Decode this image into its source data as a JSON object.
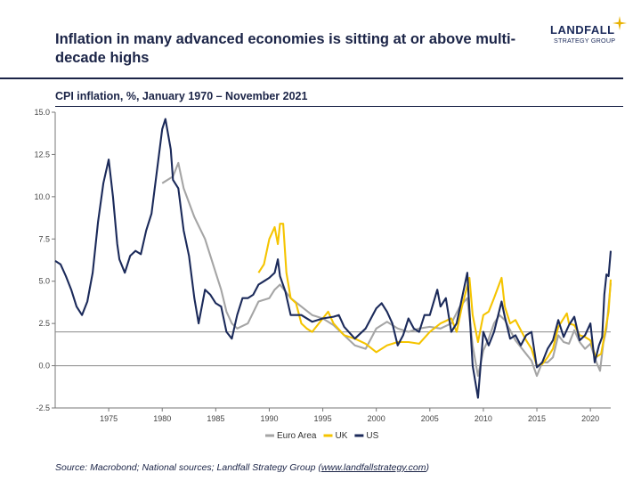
{
  "header": {
    "title": "Inflation in many advanced economies is sitting at or above multi-decade highs",
    "subtitle": "CPI inflation, %, January 1970 – November 2021"
  },
  "logo": {
    "name": "LANDFALL",
    "tagline": "STRATEGY GROUP",
    "icon": "sparkle-star-icon",
    "accent": "#e8b100"
  },
  "footer": {
    "source_prefix": "Source: Macrobond; National sources; Landfall Strategy Group (",
    "source_link": "www.landfallstrategy.com",
    "source_suffix": ")"
  },
  "chart_data": {
    "type": "line",
    "title": "",
    "xlabel": "",
    "ylabel": "",
    "xlim": [
      1970,
      2021.9
    ],
    "ylim": [
      -2.5,
      15.0
    ],
    "x_ticks": [
      1975,
      1980,
      1985,
      1990,
      1995,
      2000,
      2005,
      2010,
      2015,
      2020
    ],
    "y_ticks": [
      -2.5,
      0.0,
      2.5,
      5.0,
      7.5,
      10.0,
      12.5,
      15.0
    ],
    "y_tick_labels": [
      "-2.5",
      "0.0",
      "2.5",
      "5.0",
      "7.5",
      "10.0",
      "12.5",
      "15.0"
    ],
    "reference_line": 2.0,
    "grid": false,
    "legend_position": "bottom-center",
    "series": [
      {
        "name": "Euro Area",
        "color": "#a5a5a5",
        "points": [
          [
            1980,
            10.8
          ],
          [
            1981,
            11.2
          ],
          [
            1981.5,
            12.0
          ],
          [
            1982,
            10.5
          ],
          [
            1983,
            8.8
          ],
          [
            1984,
            7.5
          ],
          [
            1985,
            5.5
          ],
          [
            1985.5,
            4.5
          ],
          [
            1986,
            3.2
          ],
          [
            1986.5,
            2.5
          ],
          [
            1987,
            2.2
          ],
          [
            1988,
            2.5
          ],
          [
            1989,
            3.8
          ],
          [
            1990,
            4.0
          ],
          [
            1990.5,
            4.5
          ],
          [
            1991,
            4.8
          ],
          [
            1992,
            4.0
          ],
          [
            1993,
            3.5
          ],
          [
            1994,
            3.0
          ],
          [
            1995,
            2.8
          ],
          [
            1996,
            2.4
          ],
          [
            1997,
            1.8
          ],
          [
            1998,
            1.2
          ],
          [
            1999,
            1.0
          ],
          [
            2000,
            2.2
          ],
          [
            2001,
            2.6
          ],
          [
            2002,
            2.2
          ],
          [
            2003,
            2.0
          ],
          [
            2004,
            2.2
          ],
          [
            2005,
            2.3
          ],
          [
            2006,
            2.2
          ],
          [
            2007,
            2.5
          ],
          [
            2007.8,
            3.5
          ],
          [
            2008.5,
            4.0
          ],
          [
            2009,
            1.2
          ],
          [
            2009.5,
            -0.6
          ],
          [
            2010,
            0.9
          ],
          [
            2010.5,
            1.6
          ],
          [
            2011,
            2.5
          ],
          [
            2011.5,
            3.0
          ],
          [
            2012,
            2.7
          ],
          [
            2013,
            1.5
          ],
          [
            2013.5,
            1.1
          ],
          [
            2014,
            0.7
          ],
          [
            2014.5,
            0.3
          ],
          [
            2015,
            -0.6
          ],
          [
            2015.5,
            0.2
          ],
          [
            2016,
            0.2
          ],
          [
            2016.5,
            0.5
          ],
          [
            2017,
            1.8
          ],
          [
            2017.5,
            1.4
          ],
          [
            2018,
            1.3
          ],
          [
            2018.5,
            2.1
          ],
          [
            2019,
            1.4
          ],
          [
            2019.5,
            1.0
          ],
          [
            2020,
            1.3
          ],
          [
            2020.5,
            0.3
          ],
          [
            2020.9,
            -0.3
          ],
          [
            2021.2,
            1.3
          ],
          [
            2021.5,
            2.2
          ],
          [
            2021.9,
            4.9
          ]
        ]
      },
      {
        "name": "UK",
        "color": "#f5c400",
        "points": [
          [
            1989,
            5.5
          ],
          [
            1989.5,
            6.0
          ],
          [
            1990,
            7.5
          ],
          [
            1990.5,
            8.2
          ],
          [
            1990.8,
            7.2
          ],
          [
            1991,
            8.4
          ],
          [
            1991.3,
            8.4
          ],
          [
            1991.6,
            5.5
          ],
          [
            1992,
            4.0
          ],
          [
            1992.5,
            3.7
          ],
          [
            1993,
            2.5
          ],
          [
            1993.5,
            2.2
          ],
          [
            1994,
            2.0
          ],
          [
            1995,
            2.8
          ],
          [
            1995.5,
            3.2
          ],
          [
            1996,
            2.5
          ],
          [
            1997,
            1.8
          ],
          [
            1998,
            1.6
          ],
          [
            1999,
            1.3
          ],
          [
            2000,
            0.8
          ],
          [
            2001,
            1.2
          ],
          [
            2002,
            1.4
          ],
          [
            2003,
            1.4
          ],
          [
            2004,
            1.3
          ],
          [
            2005,
            2.0
          ],
          [
            2006,
            2.5
          ],
          [
            2007,
            2.8
          ],
          [
            2007.5,
            2.0
          ],
          [
            2008,
            3.5
          ],
          [
            2008.7,
            5.2
          ],
          [
            2009,
            3.0
          ],
          [
            2009.5,
            1.4
          ],
          [
            2010,
            3.0
          ],
          [
            2010.5,
            3.2
          ],
          [
            2011,
            4.0
          ],
          [
            2011.7,
            5.2
          ],
          [
            2012,
            3.5
          ],
          [
            2012.5,
            2.5
          ],
          [
            2013,
            2.7
          ],
          [
            2014,
            1.5
          ],
          [
            2014.5,
            1.0
          ],
          [
            2015,
            0.0
          ],
          [
            2015.5,
            0.1
          ],
          [
            2016,
            0.5
          ],
          [
            2016.5,
            1.0
          ],
          [
            2017,
            2.3
          ],
          [
            2017.8,
            3.1
          ],
          [
            2018,
            2.5
          ],
          [
            2018.5,
            2.4
          ],
          [
            2019,
            1.8
          ],
          [
            2019.5,
            1.7
          ],
          [
            2020,
            1.5
          ],
          [
            2020.5,
            0.5
          ],
          [
            2021,
            0.7
          ],
          [
            2021.4,
            2.1
          ],
          [
            2021.7,
            3.2
          ],
          [
            2021.9,
            5.1
          ]
        ]
      },
      {
        "name": "US",
        "color": "#1b2a5a",
        "points": [
          [
            1970,
            6.2
          ],
          [
            1970.5,
            6.0
          ],
          [
            1971,
            5.3
          ],
          [
            1971.5,
            4.5
          ],
          [
            1972,
            3.5
          ],
          [
            1972.5,
            3.0
          ],
          [
            1973,
            3.8
          ],
          [
            1973.5,
            5.5
          ],
          [
            1974,
            8.5
          ],
          [
            1974.5,
            10.8
          ],
          [
            1975,
            12.2
          ],
          [
            1975.4,
            10.0
          ],
          [
            1975.8,
            7.2
          ],
          [
            1976,
            6.3
          ],
          [
            1976.5,
            5.5
          ],
          [
            1977,
            6.5
          ],
          [
            1977.5,
            6.8
          ],
          [
            1978,
            6.6
          ],
          [
            1978.5,
            8.0
          ],
          [
            1979,
            9.0
          ],
          [
            1979.5,
            11.5
          ],
          [
            1980,
            14.0
          ],
          [
            1980.3,
            14.6
          ],
          [
            1980.8,
            12.8
          ],
          [
            1981,
            11.0
          ],
          [
            1981.5,
            10.5
          ],
          [
            1982,
            8.0
          ],
          [
            1982.5,
            6.5
          ],
          [
            1983,
            4.0
          ],
          [
            1983.4,
            2.5
          ],
          [
            1984,
            4.5
          ],
          [
            1984.5,
            4.2
          ],
          [
            1985,
            3.7
          ],
          [
            1985.5,
            3.5
          ],
          [
            1986,
            2.0
          ],
          [
            1986.5,
            1.6
          ],
          [
            1987,
            3.0
          ],
          [
            1987.5,
            4.0
          ],
          [
            1988,
            4.0
          ],
          [
            1988.5,
            4.2
          ],
          [
            1989,
            4.8
          ],
          [
            1989.5,
            5.0
          ],
          [
            1990,
            5.2
          ],
          [
            1990.5,
            5.5
          ],
          [
            1990.8,
            6.3
          ],
          [
            1991,
            5.3
          ],
          [
            1991.5,
            4.4
          ],
          [
            1992,
            3.0
          ],
          [
            1993,
            3.0
          ],
          [
            1994,
            2.6
          ],
          [
            1995,
            2.8
          ],
          [
            1996,
            2.9
          ],
          [
            1996.5,
            3.0
          ],
          [
            1997,
            2.3
          ],
          [
            1998,
            1.6
          ],
          [
            1999,
            2.2
          ],
          [
            2000,
            3.4
          ],
          [
            2000.5,
            3.7
          ],
          [
            2001,
            3.2
          ],
          [
            2001.5,
            2.5
          ],
          [
            2002,
            1.2
          ],
          [
            2002.5,
            1.8
          ],
          [
            2003,
            2.8
          ],
          [
            2003.5,
            2.2
          ],
          [
            2004,
            2.0
          ],
          [
            2004.5,
            3.0
          ],
          [
            2005,
            3.0
          ],
          [
            2005.7,
            4.5
          ],
          [
            2006,
            3.5
          ],
          [
            2006.5,
            4.0
          ],
          [
            2007,
            2.0
          ],
          [
            2007.5,
            2.5
          ],
          [
            2008,
            4.0
          ],
          [
            2008.5,
            5.5
          ],
          [
            2009,
            0.0
          ],
          [
            2009.5,
            -1.9
          ],
          [
            2010,
            2.0
          ],
          [
            2010.5,
            1.2
          ],
          [
            2011,
            2.0
          ],
          [
            2011.7,
            3.8
          ],
          [
            2012,
            2.9
          ],
          [
            2012.5,
            1.6
          ],
          [
            2013,
            1.8
          ],
          [
            2013.5,
            1.2
          ],
          [
            2014,
            1.8
          ],
          [
            2014.5,
            2.0
          ],
          [
            2015,
            -0.1
          ],
          [
            2015.5,
            0.2
          ],
          [
            2016,
            1.0
          ],
          [
            2016.5,
            1.5
          ],
          [
            2017,
            2.7
          ],
          [
            2017.5,
            1.7
          ],
          [
            2018,
            2.4
          ],
          [
            2018.5,
            2.9
          ],
          [
            2019,
            1.5
          ],
          [
            2019.5,
            1.8
          ],
          [
            2020,
            2.5
          ],
          [
            2020.4,
            0.2
          ],
          [
            2020.8,
            1.2
          ],
          [
            2021.1,
            1.7
          ],
          [
            2021.3,
            4.2
          ],
          [
            2021.5,
            5.4
          ],
          [
            2021.7,
            5.3
          ],
          [
            2021.9,
            6.8
          ]
        ]
      }
    ]
  }
}
